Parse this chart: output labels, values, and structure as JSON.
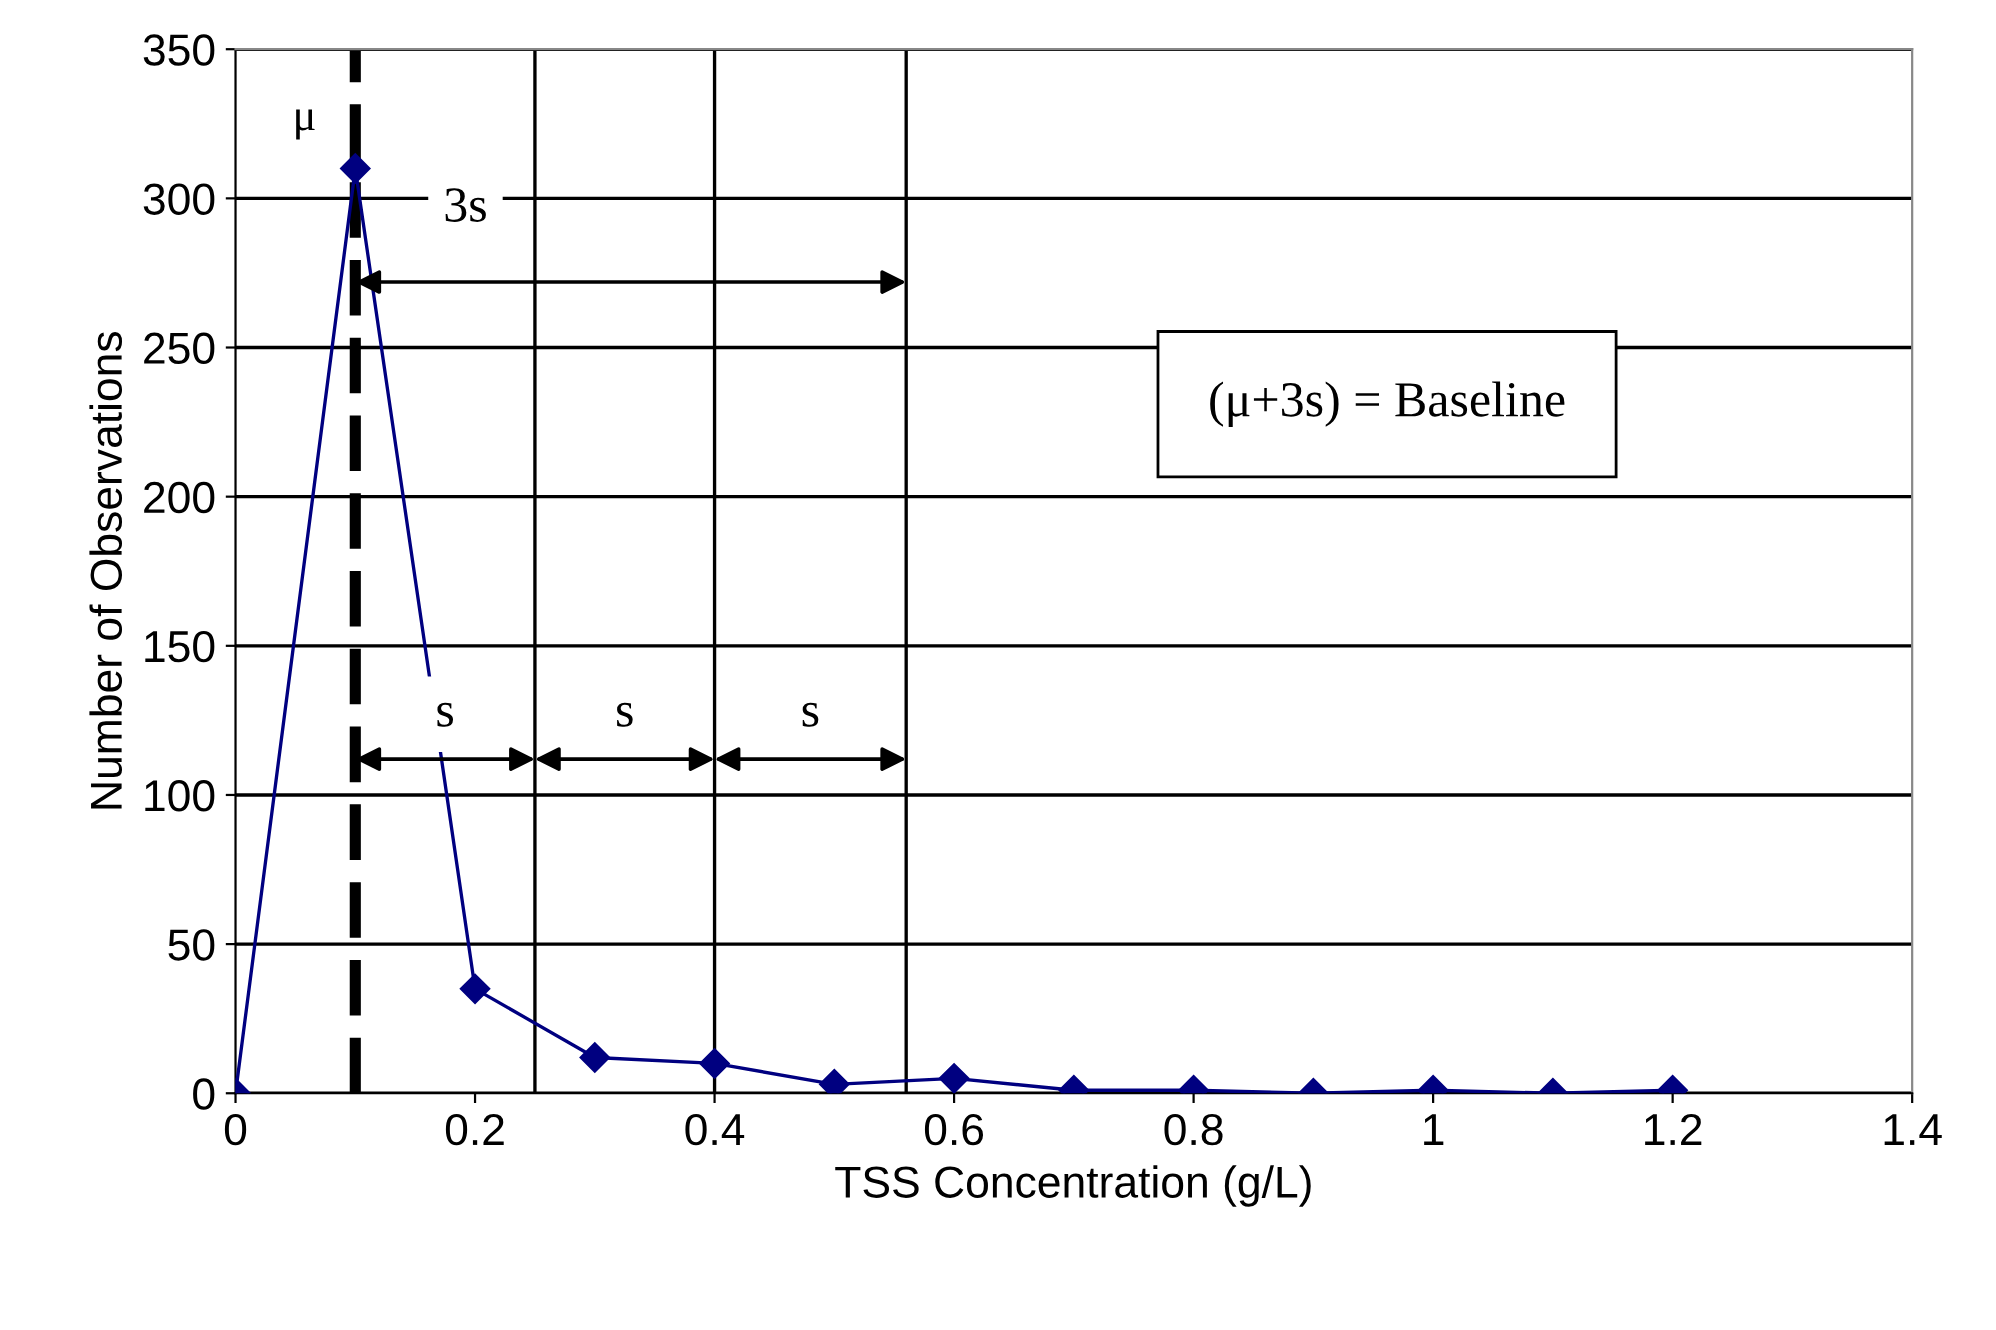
{
  "chart_data": {
    "type": "line",
    "xlabel": "TSS Concentration (g/L)",
    "ylabel": "Number of Observations",
    "x": [
      0,
      0.1,
      0.2,
      0.3,
      0.4,
      0.5,
      0.6,
      0.7,
      0.8,
      0.9,
      1.0,
      1.1,
      1.2
    ],
    "series": [
      {
        "color": "#000080",
        "values": [
          0,
          310,
          35,
          12,
          10,
          3,
          5,
          1,
          1,
          0,
          1,
          0,
          1
        ]
      }
    ],
    "marker": "diamond",
    "line_style": "solid",
    "grid": "y",
    "legend": false,
    "xlim": [
      0,
      1.4
    ],
    "xticks": [
      0,
      0.2,
      0.4,
      0.6,
      0.8,
      1,
      1.2,
      1.4
    ],
    "ylim": [
      0,
      350
    ],
    "yticks": [
      0,
      50,
      100,
      150,
      200,
      250,
      300,
      350
    ],
    "ref_lines": [
      {
        "axis": "x",
        "value": 0.1,
        "label": "μ",
        "line_style": "dashed",
        "color": "#000000"
      },
      {
        "axis": "x",
        "value": 0.25,
        "color": "#000000"
      },
      {
        "axis": "x",
        "value": 0.4,
        "color": "#000000"
      },
      {
        "axis": "x",
        "value": 0.56,
        "color": "#000000"
      }
    ],
    "annotations": [
      "3s",
      "s",
      "s",
      "s",
      "(μ+3s) = Baseline"
    ]
  }
}
